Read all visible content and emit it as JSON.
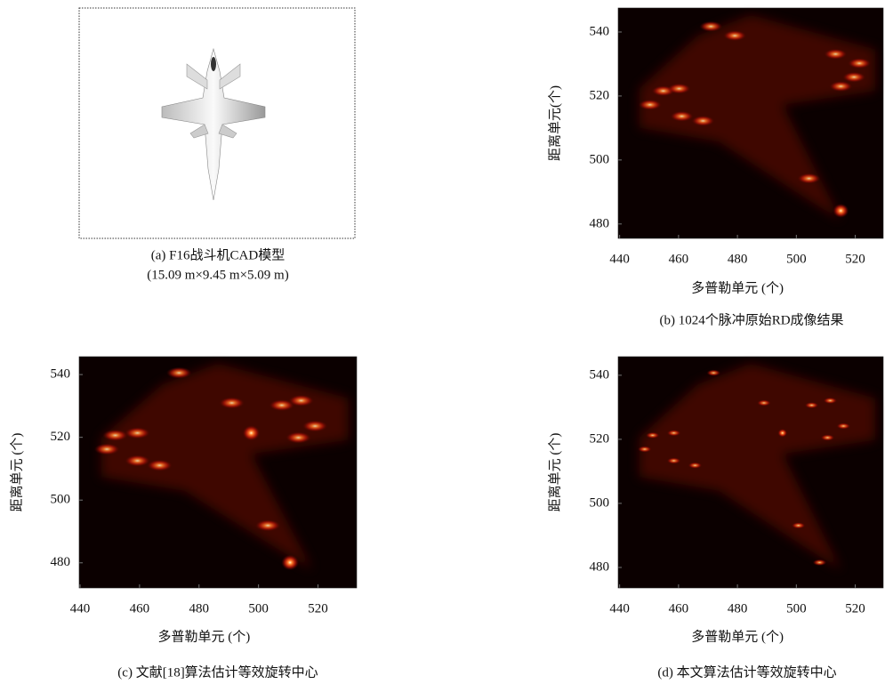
{
  "figure": {
    "panels": [
      {
        "type": "image",
        "caption": [
          "(a) F16战斗机CAD模型",
          "(15.09 m×9.45 m×5.09 m)"
        ]
      },
      {
        "type": "heatmap",
        "caption": "(b) 1024个脉冲原始RD成像结果",
        "xlabel": "多普勒单元 (个)",
        "ylabel": "距离单元(个)",
        "xlim": [
          439.5,
          529.5
        ],
        "ylim": [
          475.5,
          547.5
        ],
        "xticks": [
          440,
          460,
          480,
          500,
          520
        ],
        "yticks": [
          480,
          500,
          520,
          540
        ]
      },
      {
        "type": "heatmap",
        "caption": "(c) 文献[18]算法估计等效旋转中心",
        "xlabel": "多普勒单元 (个)",
        "ylabel": "距离单元 (个)",
        "xlim": [
          439.7,
          533
        ],
        "ylim": [
          472,
          545.7
        ],
        "xticks": [
          440,
          460,
          480,
          500,
          520
        ],
        "yticks": [
          480,
          500,
          520,
          540
        ]
      },
      {
        "type": "heatmap",
        "caption": "(d) 本文算法估计等效旋转中心",
        "xlabel": "多普勒单元 (个)",
        "ylabel": "距离单元 (个)",
        "xlim": [
          439.5,
          529.5
        ],
        "ylim": [
          473.6,
          545.8
        ],
        "xticks": [
          440,
          460,
          480,
          500,
          520
        ],
        "yticks": [
          480,
          500,
          520,
          540
        ]
      }
    ]
  }
}
